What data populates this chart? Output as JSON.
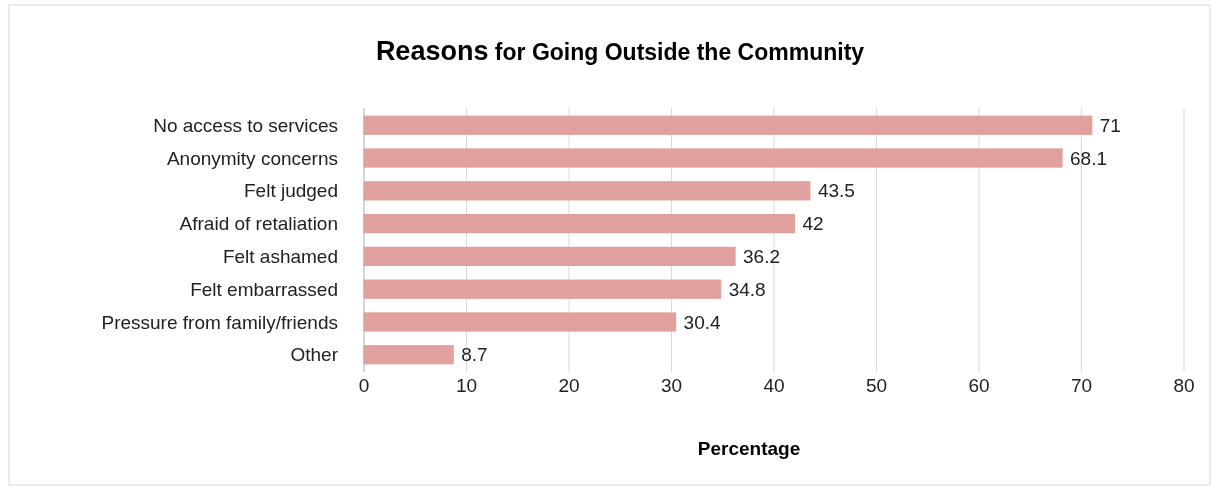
{
  "chart_data": {
    "type": "bar",
    "orientation": "horizontal",
    "title": "Reasons for Going Outside the Community",
    "xlabel": "Percentage",
    "categories": [
      "No access to services",
      "Anonymity concerns",
      "Felt judged",
      "Afraid of retaliation",
      "Felt ashamed",
      "Felt embarrassed",
      "Pressure from family/friends",
      "Other"
    ],
    "values": [
      71,
      68.1,
      43.5,
      42,
      36.2,
      34.8,
      30.4,
      8.7
    ],
    "color": "#e0a09e",
    "xlim": [
      0,
      80
    ],
    "xticks": [
      0,
      10,
      20,
      30,
      40,
      50,
      60,
      70,
      80
    ],
    "grid": "x",
    "data_labels": true
  }
}
